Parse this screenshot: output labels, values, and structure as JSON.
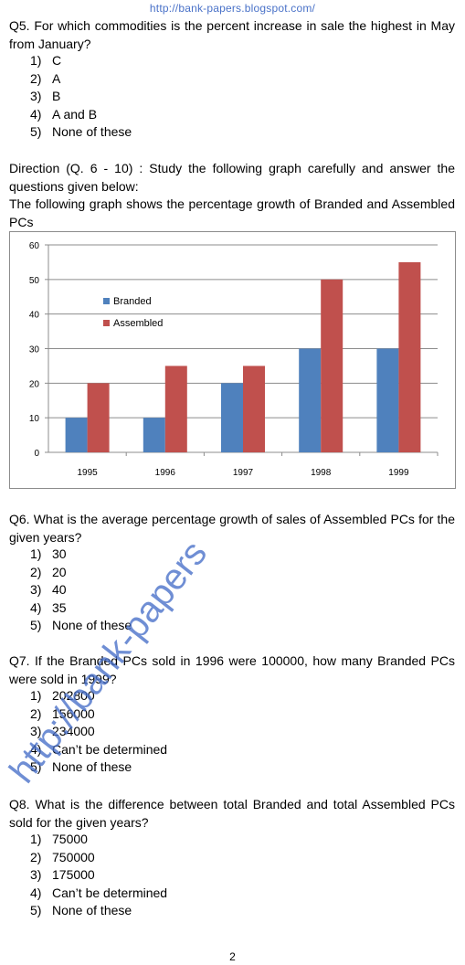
{
  "header": "http://bank-papers.blogspot.com/",
  "q5": {
    "text": "Q5. For which commodities is the percent increase in sale the highest in May from January?",
    "options": [
      {
        "num": "1)",
        "text": "C"
      },
      {
        "num": "2)",
        "text": "A"
      },
      {
        "num": "3)",
        "text": "B"
      },
      {
        "num": "4)",
        "text": "A and B"
      },
      {
        "num": "5)",
        "text": "None of these"
      }
    ]
  },
  "direction": {
    "line1": "Direction (Q. 6 - 10) : Study the following graph carefully and answer the questions given below:",
    "line2": "The following graph shows the percentage growth of Branded and Assembled PCs"
  },
  "chart_data": {
    "type": "bar",
    "categories": [
      "1995",
      "1996",
      "1997",
      "1998",
      "1999"
    ],
    "series": [
      {
        "name": "Branded",
        "values": [
          10,
          10,
          20,
          30,
          30
        ],
        "color": "#4f81bd"
      },
      {
        "name": "Assembled",
        "values": [
          20,
          25,
          25,
          50,
          55
        ],
        "color": "#c0504d"
      }
    ],
    "ylim": [
      0,
      60
    ],
    "yticks": [
      "0",
      "10",
      "20",
      "30",
      "40",
      "50",
      "60"
    ],
    "grid": true,
    "legend": "upper-left-inside",
    "title": "",
    "xlabel": "",
    "ylabel": ""
  },
  "q6": {
    "text": "Q6. What is the average percentage growth of sales of Assembled PCs for the given years?",
    "options": [
      {
        "num": "1)",
        "text": "30"
      },
      {
        "num": "2)",
        "text": "20"
      },
      {
        "num": "3)",
        "text": "40"
      },
      {
        "num": "4)",
        "text": "35"
      },
      {
        "num": "5)",
        "text": "None of these"
      }
    ]
  },
  "q7": {
    "text": "Q7. If the Branded PCs sold in 1996 were 100000, how many Branded PCs were sold in 1999?",
    "options": [
      {
        "num": "1)",
        "text": "202800"
      },
      {
        "num": "2)",
        "text": "156000"
      },
      {
        "num": "3)",
        "text": "234000"
      },
      {
        "num": "4)",
        "text": "Can’t be determined"
      },
      {
        "num": "5)",
        "text": "None of these"
      }
    ]
  },
  "q8": {
    "text": "Q8. What is the difference between total Branded and total Assembled PCs sold for the given years?",
    "options": [
      {
        "num": "1)",
        "text": "75000"
      },
      {
        "num": "2)",
        "text": "750000"
      },
      {
        "num": "3)",
        "text": "175000"
      },
      {
        "num": "4)",
        "text": "Can’t be determined"
      },
      {
        "num": "5)",
        "text": "None of these"
      }
    ]
  },
  "watermark": "http://bank-papers",
  "page_number": "2"
}
